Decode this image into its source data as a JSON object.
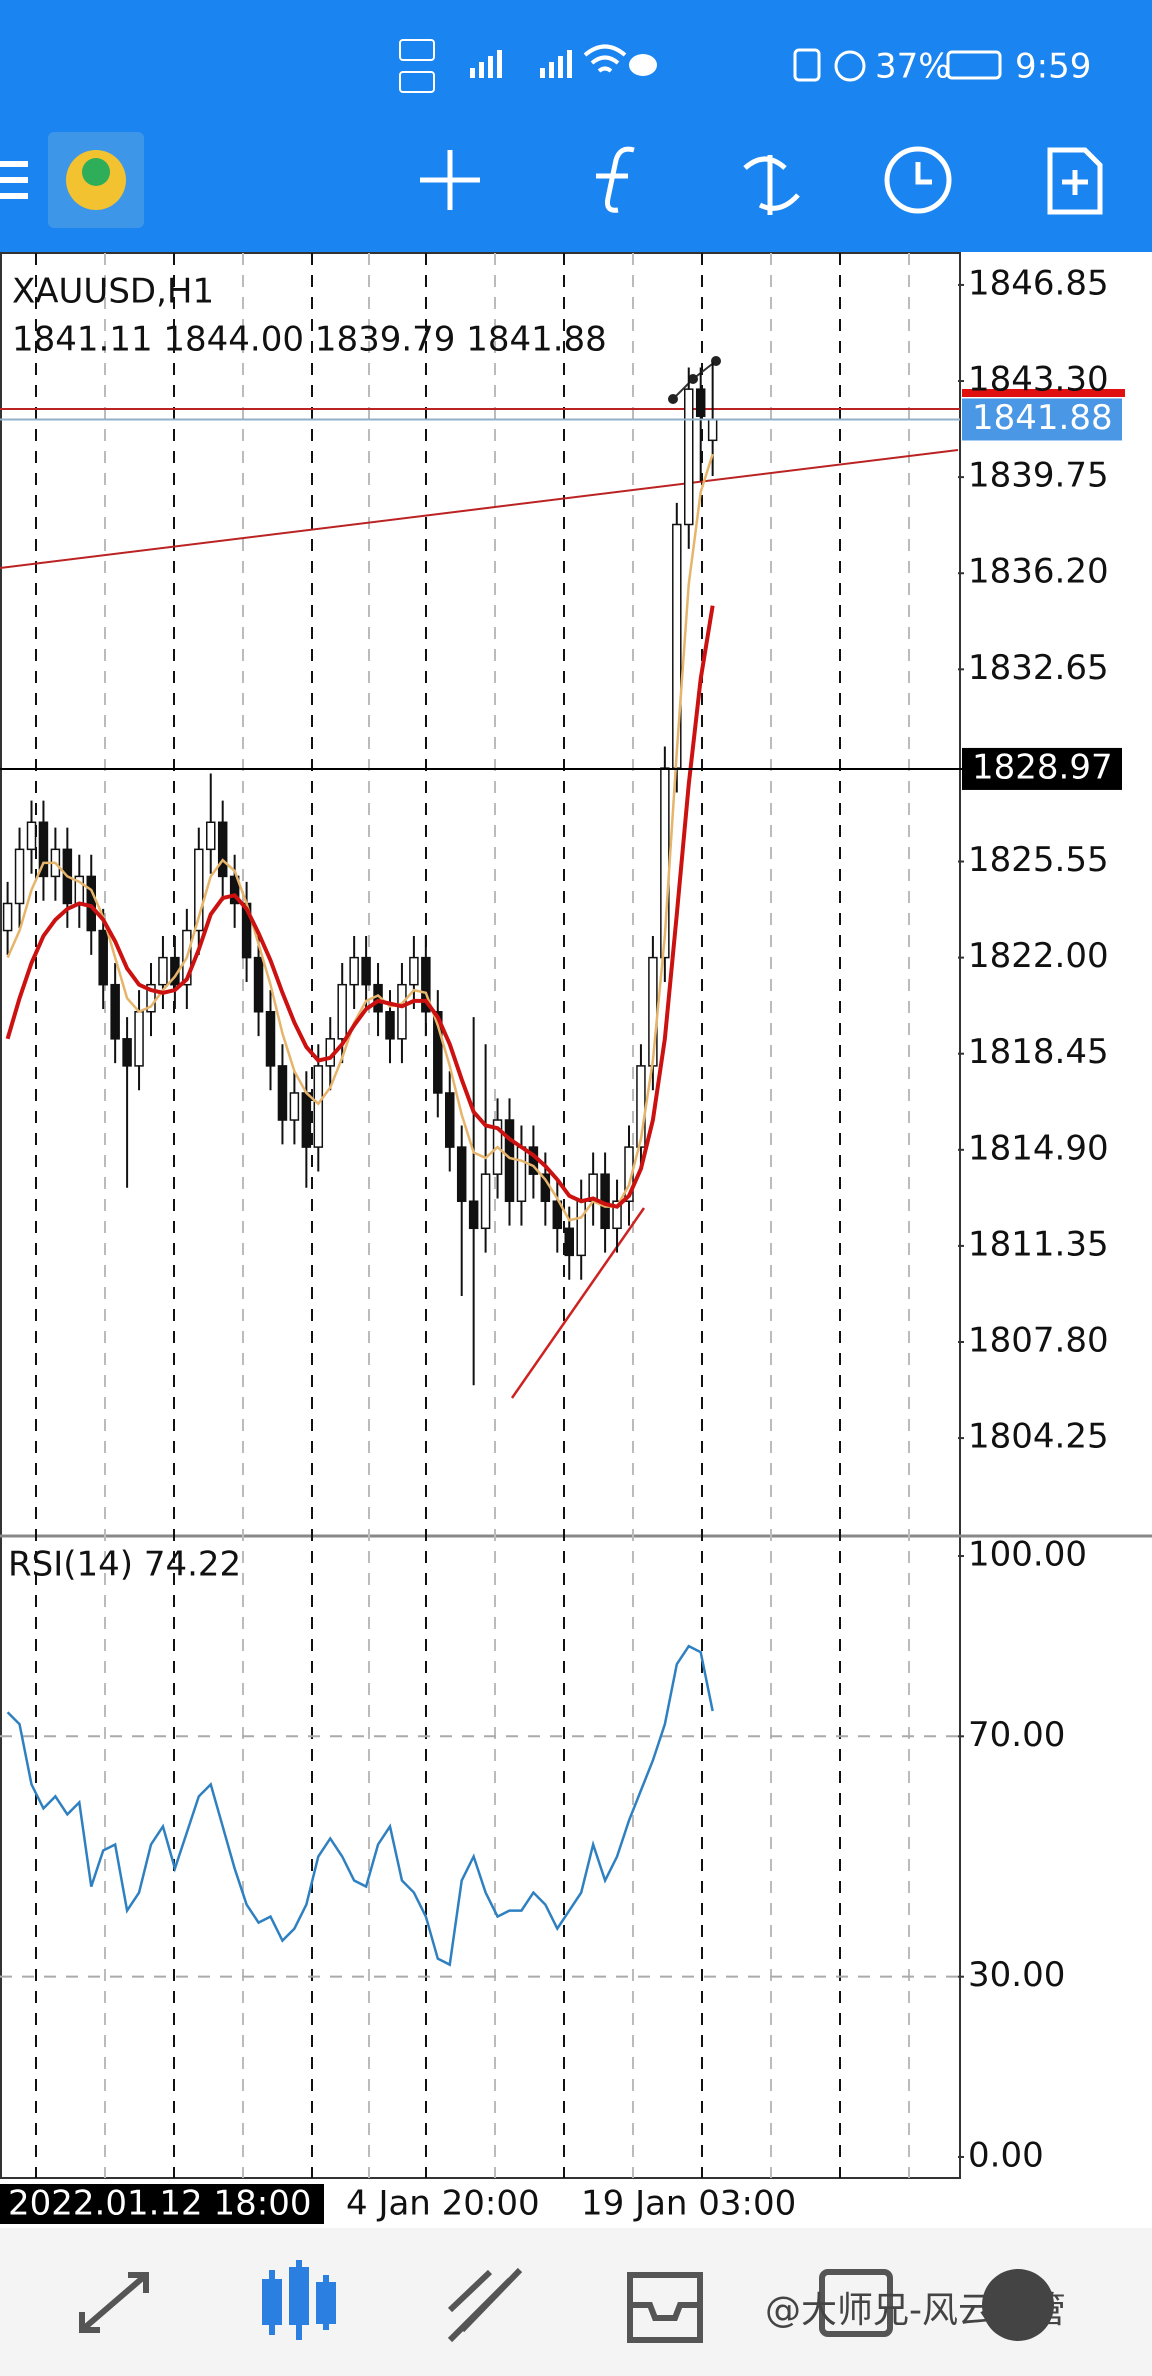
{
  "status_bar": {
    "battery": "37%",
    "time": "9:59"
  },
  "chart_data": [
    {
      "type": "candlestick",
      "title": "XAUUSD,H1",
      "subtitle": "1841.11 1844.00 1839.79 1841.88",
      "open": [
        1823,
        1824,
        1826,
        1827,
        1825,
        1826,
        1824,
        1825,
        1823,
        1821,
        1819,
        1818,
        1820,
        1821,
        1822,
        1821,
        1823,
        1826,
        1827,
        1825,
        1824,
        1822,
        1820,
        1818,
        1816,
        1817,
        1815,
        1818,
        1819,
        1821,
        1822,
        1821,
        1820,
        1819,
        1821,
        1822,
        1820,
        1817,
        1815,
        1813,
        1812,
        1814,
        1816,
        1813,
        1815,
        1814,
        1813,
        1812,
        1811,
        1813,
        1814,
        1812,
        1813,
        1815,
        1818,
        1822,
        1829,
        1838,
        1843,
        1841.11
      ],
      "high": [
        1824.8,
        1826.8,
        1827.8,
        1827.8,
        1826.8,
        1826.8,
        1825.8,
        1825.8,
        1823.8,
        1821.8,
        1819.8,
        1820.8,
        1821.8,
        1822.8,
        1822.8,
        1823.8,
        1826.8,
        1828.8,
        1827.8,
        1825.8,
        1824.8,
        1822.8,
        1820.8,
        1818.8,
        1817.8,
        1817.8,
        1818.8,
        1819.8,
        1821.8,
        1822.8,
        1822.8,
        1821.8,
        1820.8,
        1821.8,
        1822.8,
        1822.8,
        1820.8,
        1817.8,
        1815.8,
        1819.8,
        1818.8,
        1816.8,
        1816.8,
        1815.8,
        1815.8,
        1814.8,
        1813.8,
        1812.8,
        1813.8,
        1814.8,
        1814.8,
        1813.8,
        1815.8,
        1818.8,
        1822.8,
        1829.8,
        1838.8,
        1843.8,
        1843.8,
        1844
      ],
      "low": [
        1822.1,
        1823.1,
        1825.1,
        1824.1,
        1824.1,
        1823.1,
        1823.1,
        1822.1,
        1820.1,
        1818.1,
        1813.5,
        1817.1,
        1819.1,
        1820.1,
        1820.1,
        1820.1,
        1822.1,
        1825.1,
        1824.1,
        1823.1,
        1821.1,
        1819.1,
        1817.1,
        1815.1,
        1815.1,
        1813.5,
        1814.1,
        1817.1,
        1818.1,
        1820.1,
        1820.1,
        1819.1,
        1818.1,
        1818.1,
        1820.1,
        1819.1,
        1816.1,
        1814.1,
        1809.5,
        1806.2,
        1811.1,
        1813.1,
        1812.1,
        1812.1,
        1813.1,
        1812.1,
        1811.1,
        1810.1,
        1810.1,
        1812.1,
        1811.1,
        1811.1,
        1812.1,
        1814.1,
        1817.1,
        1821.1,
        1828.1,
        1837.1,
        1839.6,
        1839.79
      ],
      "close": [
        1824,
        1826,
        1827,
        1825,
        1826,
        1824,
        1825,
        1823,
        1821,
        1819,
        1818,
        1820,
        1821,
        1822,
        1821,
        1823,
        1826,
        1827,
        1825,
        1824,
        1822,
        1820,
        1818,
        1816,
        1817,
        1815,
        1818,
        1819,
        1821,
        1822,
        1821,
        1820,
        1819,
        1821,
        1822,
        1820,
        1817,
        1815,
        1813,
        1812,
        1814,
        1816,
        1813,
        1815,
        1814,
        1813,
        1812,
        1811,
        1813,
        1814,
        1812,
        1813,
        1815,
        1818,
        1822,
        1829,
        1838,
        1843,
        1842,
        1841.88
      ],
      "moving_averages": [
        {
          "color": "#e6b46a",
          "values": [
            1822,
            1823,
            1824.5,
            1825.5,
            1825.5,
            1825,
            1824.8,
            1824.5,
            1823.5,
            1822,
            1820.5,
            1820,
            1820.2,
            1820.8,
            1821.3,
            1822,
            1823.5,
            1825,
            1825.6,
            1825.2,
            1824,
            1822.5,
            1821,
            1819.2,
            1817.8,
            1817,
            1816.6,
            1817.2,
            1818.3,
            1819.6,
            1820.4,
            1820.6,
            1820.2,
            1820.3,
            1820.8,
            1820.7,
            1819.5,
            1818,
            1816.2,
            1814.8,
            1814.6,
            1815,
            1814.6,
            1814.5,
            1814.3,
            1813.8,
            1813.1,
            1812.3,
            1812.4,
            1813,
            1812.8,
            1812.8,
            1813.6,
            1815.3,
            1818.2,
            1822.8,
            1829.6,
            1835.8,
            1839.2,
            1840.6
          ]
        },
        {
          "color": "#cc1111",
          "values": [
            1819,
            1820.5,
            1821.8,
            1822.8,
            1823.4,
            1823.8,
            1824,
            1823.9,
            1823.4,
            1822.6,
            1821.6,
            1821,
            1820.8,
            1820.7,
            1820.8,
            1821.2,
            1822.3,
            1823.6,
            1824.2,
            1824.3,
            1823.8,
            1822.9,
            1821.9,
            1820.7,
            1819.6,
            1818.7,
            1818.2,
            1818.3,
            1818.8,
            1819.5,
            1820.1,
            1820.4,
            1820.3,
            1820.2,
            1820.4,
            1820.4,
            1819.8,
            1818.8,
            1817.5,
            1816.3,
            1815.8,
            1815.7,
            1815.3,
            1815,
            1814.7,
            1814.3,
            1813.8,
            1813.2,
            1813,
            1813.1,
            1812.9,
            1812.8,
            1813.2,
            1814.2,
            1816,
            1819,
            1823.6,
            1828.4,
            1832.3,
            1835
          ]
        }
      ],
      "ylim": [
        1800.67,
        1848.03
      ],
      "yticks": [
        1846.85,
        {
          "value": 1843.3,
          "label": "1843.30"
        },
        1839.75,
        {
          "value": 1836.2,
          "label": "1836.20"
        },
        1832.65,
        1825.55,
        {
          "value": 1822,
          "label": "1822.00"
        },
        1818.45,
        {
          "value": 1814.9,
          "label": "1814.90"
        },
        1811.35,
        {
          "value": 1807.8,
          "label": "1807.80"
        },
        1804.25
      ],
      "current_price": 1841.88,
      "crosshair_price": 1828.97,
      "x_labels": [
        "2022.01.12 18:00",
        "4 Jan 20:00",
        "19 Jan 03:00"
      ]
    },
    {
      "type": "line",
      "title": "RSI(14) 74.22",
      "color": "#2f80c0",
      "values": [
        74,
        72,
        62,
        58,
        60,
        57,
        59,
        45,
        51,
        52,
        41,
        44,
        52,
        55,
        48,
        54,
        60,
        62,
        55,
        48,
        42,
        39,
        40,
        36,
        38,
        42,
        50,
        53,
        50,
        46,
        45,
        52,
        55,
        46,
        44,
        40,
        33,
        32,
        46,
        50,
        44,
        40,
        41,
        41,
        44,
        42,
        38,
        41,
        44,
        52,
        46,
        50,
        56,
        61,
        66,
        72,
        82,
        85,
        84,
        74.22
      ],
      "ylim": [
        -3.5,
        103
      ],
      "yticks": [
        {
          "value": 100,
          "label": "100.00"
        },
        {
          "value": 70,
          "label": "70.00"
        },
        {
          "value": 30,
          "label": "30.00"
        },
        {
          "value": 0,
          "label": "0.00"
        }
      ]
    }
  ],
  "watermark": "@大师兄-风云资管"
}
